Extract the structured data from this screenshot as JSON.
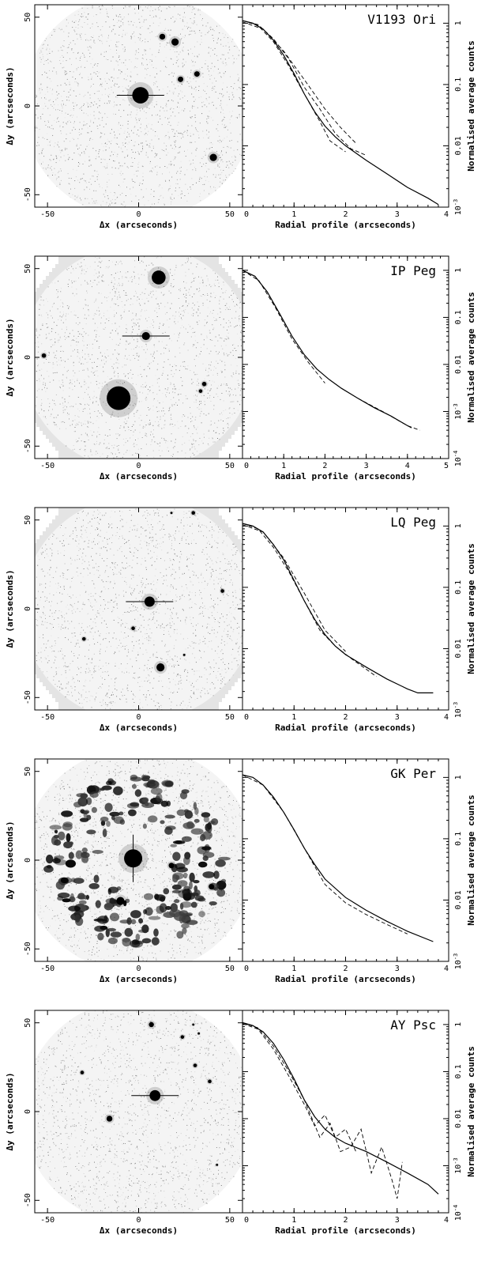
{
  "panels": [
    {
      "image": {
        "star_name": "V1193 Ori",
        "xlabel": "Δx (arcseconds)",
        "ylabel": "Δy (arcseconds)",
        "xticks": [
          "-50",
          "0",
          "50"
        ],
        "yticks": [
          "50",
          "0",
          "-50"
        ],
        "xlim": [
          -57,
          57
        ],
        "ylim": [
          -57,
          57
        ],
        "sources": [
          {
            "x": 1,
            "y": 6,
            "r": 4.5
          },
          {
            "x": 13,
            "y": 39,
            "r": 1.6
          },
          {
            "x": 20,
            "y": 36,
            "r": 2
          },
          {
            "x": 23,
            "y": 15,
            "r": 1.5
          },
          {
            "x": 32,
            "y": 18,
            "r": 1.5
          },
          {
            "x": 41,
            "y": -29,
            "r": 2
          }
        ],
        "target": {
          "x": 1,
          "y": 6
        }
      },
      "chart_data": {
        "type": "line",
        "xlabel": "Radial profile (arcseconds)",
        "ylabel": "Normalised average counts",
        "xlim": [
          0,
          4
        ],
        "ylim": [
          0.001,
          2
        ],
        "yscale": "log",
        "xticks": [
          "0",
          "1",
          "2",
          "3",
          "4"
        ],
        "yticks": [
          "1",
          "0.1",
          "0.01",
          "10^-3"
        ],
        "series": [
          {
            "style": "solid",
            "x": [
              0,
              0.2,
              0.4,
              0.6,
              0.8,
              1.0,
              1.2,
              1.4,
              1.6,
              1.8,
              2.0,
              2.4,
              2.8,
              3.2,
              3.6,
              3.8
            ],
            "y": [
              1.1,
              1.0,
              0.8,
              0.53,
              0.3,
              0.15,
              0.07,
              0.036,
              0.021,
              0.014,
              0.01,
              0.0058,
              0.0035,
              0.0021,
              0.0014,
              0.0011
            ]
          },
          {
            "style": "dashed",
            "x": [
              0,
              0.3,
              0.6,
              0.9,
              1.2,
              1.5,
              1.8,
              2.1,
              2.4
            ],
            "y": [
              1.1,
              0.95,
              0.56,
              0.26,
              0.09,
              0.04,
              0.016,
              0.009,
              0.007
            ]
          },
          {
            "style": "dashed",
            "x": [
              0,
              0.3,
              0.6,
              0.9,
              1.2,
              1.5,
              1.7,
              2.0
            ],
            "y": [
              1.1,
              0.92,
              0.5,
              0.2,
              0.07,
              0.025,
              0.012,
              0.008
            ]
          },
          {
            "style": "dashed",
            "x": [
              0,
              0.4,
              0.8,
              1.2,
              1.6,
              1.9,
              2.2
            ],
            "y": [
              1.05,
              0.8,
              0.35,
              0.12,
              0.04,
              0.02,
              0.011
            ]
          }
        ]
      }
    },
    {
      "image": {
        "star_name": "IP Peg",
        "xlabel": "Δx (arcseconds)",
        "ylabel": "Δy (arcseconds)",
        "xticks": [
          "-50",
          "0",
          "50"
        ],
        "yticks": [
          "50",
          "0",
          "-50"
        ],
        "xlim": [
          -57,
          57
        ],
        "ylim": [
          -57,
          57
        ],
        "sources": [
          {
            "x": 11,
            "y": 45,
            "r": 3.8
          },
          {
            "x": 4,
            "y": 12,
            "r": 2.2
          },
          {
            "x": -52,
            "y": 1,
            "r": 1.2
          },
          {
            "x": -11,
            "y": -23,
            "r": 6.5
          },
          {
            "x": 36,
            "y": -15,
            "r": 1.2
          },
          {
            "x": 34,
            "y": -19,
            "r": 1
          }
        ],
        "target": {
          "x": 4,
          "y": 12
        }
      },
      "chart_data": {
        "type": "line",
        "xlabel": "Radial profile (arcseconds)",
        "ylabel": "Normalised average counts",
        "xlim": [
          0,
          5
        ],
        "ylim": [
          0.0001,
          2
        ],
        "yscale": "log",
        "xticks": [
          "0",
          "1",
          "2",
          "3",
          "4",
          "5"
        ],
        "yticks": [
          "1",
          "0.1",
          "0.01",
          "10^-3",
          "10^-4"
        ],
        "series": [
          {
            "style": "solid",
            "x": [
              0,
              0.3,
              0.6,
              0.9,
              1.2,
              1.5,
              1.8,
              2.1,
              2.4,
              2.8,
              3.2,
              3.6,
              4.0,
              4.1
            ],
            "y": [
              1.0,
              0.75,
              0.35,
              0.12,
              0.04,
              0.016,
              0.008,
              0.0048,
              0.0031,
              0.0019,
              0.0012,
              0.0008,
              0.0005,
              0.00045
            ]
          },
          {
            "style": "dashed",
            "x": [
              0,
              0.4,
              0.8,
              1.2,
              1.6,
              2.0
            ],
            "y": [
              1.0,
              0.6,
              0.16,
              0.035,
              0.011,
              0.004
            ]
          },
          {
            "style": "dashed",
            "x": [
              2.8,
              3.4,
              4.0,
              4.3
            ],
            "y": [
              0.0019,
              0.001,
              0.0005,
              0.0004
            ]
          }
        ]
      }
    },
    {
      "image": {
        "star_name": "LQ Peg",
        "xlabel": "Δx (arcseconds)",
        "ylabel": "Δy (arcseconds)",
        "xticks": [
          "-50",
          "0",
          "50"
        ],
        "yticks": [
          "50",
          "0",
          "-50"
        ],
        "xlim": [
          -57,
          57
        ],
        "ylim": [
          -57,
          57
        ],
        "sources": [
          {
            "x": 6,
            "y": 4,
            "r": 2.8
          },
          {
            "x": 30,
            "y": 54,
            "r": 1
          },
          {
            "x": 18,
            "y": 54,
            "r": 0.6
          },
          {
            "x": 46,
            "y": 10,
            "r": 1
          },
          {
            "x": 12,
            "y": -33,
            "r": 2.2
          },
          {
            "x": -30,
            "y": -17,
            "r": 1
          },
          {
            "x": -3,
            "y": -11,
            "r": 1
          },
          {
            "x": 25,
            "y": -26,
            "r": 0.6
          }
        ],
        "target": {
          "x": 6,
          "y": 4
        }
      },
      "chart_data": {
        "type": "line",
        "xlabel": "Radial profile (arcseconds)",
        "ylabel": "Normalised average counts",
        "xlim": [
          0,
          4
        ],
        "ylim": [
          0.001,
          2
        ],
        "yscale": "log",
        "xticks": [
          "0",
          "1",
          "2",
          "3",
          "4"
        ],
        "yticks": [
          "1",
          "0.1",
          "0.01",
          "10^-3"
        ],
        "series": [
          {
            "style": "solid",
            "x": [
              0,
              0.2,
              0.4,
              0.6,
              0.8,
              1.0,
              1.2,
              1.4,
              1.6,
              1.8,
              2.0,
              2.4,
              2.8,
              3.2,
              3.4,
              3.7
            ],
            "y": [
              1.1,
              1.0,
              0.8,
              0.5,
              0.28,
              0.13,
              0.06,
              0.03,
              0.017,
              0.011,
              0.008,
              0.005,
              0.0032,
              0.0022,
              0.0019,
              0.0019
            ]
          },
          {
            "style": "dashed",
            "x": [
              0,
              0.3,
              0.6,
              0.9,
              1.2,
              1.5,
              1.8,
              2.1,
              2.6
            ],
            "y": [
              1.1,
              0.9,
              0.45,
              0.18,
              0.06,
              0.02,
              0.011,
              0.007,
              0.0035
            ]
          },
          {
            "style": "dashed",
            "x": [
              0,
              0.4,
              0.8,
              1.2,
              1.6,
              2.0
            ],
            "y": [
              1.05,
              0.8,
              0.3,
              0.08,
              0.02,
              0.009
            ]
          }
        ]
      }
    },
    {
      "image": {
        "star_name": "GK Per",
        "xlabel": "Δx (arcseconds)",
        "ylabel": "Δy (arcseconds)",
        "xticks": [
          "-50",
          "0",
          "50"
        ],
        "yticks": [
          "50",
          "0",
          "-50"
        ],
        "xlim": [
          -57,
          57
        ],
        "ylim": [
          -57,
          57
        ],
        "sources": [
          {
            "x": -3,
            "y": 1,
            "r": 5
          },
          {
            "x": -10,
            "y": -23,
            "r": 2.2
          },
          {
            "x": 18,
            "y": -3,
            "r": 1.5
          },
          {
            "x": 40,
            "y": -15,
            "r": 1.5
          }
        ],
        "target": {
          "x": -3,
          "y": 1
        }
      },
      "chart_data": {
        "type": "line",
        "xlabel": "Radial profile (arcseconds)",
        "ylabel": "Normalised average counts",
        "xlim": [
          0,
          4
        ],
        "ylim": [
          0.001,
          2
        ],
        "yscale": "log",
        "xticks": [
          "0",
          "1",
          "2",
          "3",
          "4"
        ],
        "yticks": [
          "1",
          "0.1",
          "0.01",
          "10^-3"
        ],
        "series": [
          {
            "style": "solid",
            "x": [
              0,
              0.2,
              0.4,
              0.6,
              0.8,
              1.0,
              1.2,
              1.4,
              1.6,
              2.0,
              2.4,
              2.8,
              3.2,
              3.7
            ],
            "y": [
              1.1,
              1.0,
              0.75,
              0.48,
              0.27,
              0.14,
              0.07,
              0.038,
              0.022,
              0.011,
              0.0068,
              0.0045,
              0.0031,
              0.0021
            ]
          },
          {
            "style": "dashed",
            "x": [
              0,
              0.4,
              0.8,
              1.2,
              1.6,
              2.0,
              2.4,
              2.8,
              3.2
            ],
            "y": [
              1.1,
              0.75,
              0.27,
              0.07,
              0.018,
              0.009,
              0.0058,
              0.004,
              0.0028
            ]
          }
        ]
      }
    },
    {
      "image": {
        "star_name": "AY Psc",
        "xlabel": "Δx (arcseconds)",
        "ylabel": "Δy (arcseconds)",
        "xticks": [
          "-50",
          "0",
          "50"
        ],
        "yticks": [
          "50",
          "0",
          "-50"
        ],
        "xlim": [
          -57,
          57
        ],
        "ylim": [
          -57,
          57
        ],
        "sources": [
          {
            "x": 9,
            "y": 9,
            "r": 3
          },
          {
            "x": 7,
            "y": 49,
            "r": 1.4
          },
          {
            "x": 24,
            "y": 42,
            "r": 1
          },
          {
            "x": 30,
            "y": 49,
            "r": 0.6
          },
          {
            "x": 33,
            "y": 44,
            "r": 0.6
          },
          {
            "x": 31,
            "y": 26,
            "r": 1
          },
          {
            "x": 39,
            "y": 17,
            "r": 1
          },
          {
            "x": -31,
            "y": 22,
            "r": 1
          },
          {
            "x": -16,
            "y": -4,
            "r": 1.6
          },
          {
            "x": 43,
            "y": -30,
            "r": 0.6
          }
        ],
        "target": {
          "x": 9,
          "y": 9
        }
      },
      "chart_data": {
        "type": "line",
        "xlabel": "Radial profile (arcseconds)",
        "ylabel": "Normalised average counts",
        "xlim": [
          0,
          4
        ],
        "ylim": [
          0.0001,
          2
        ],
        "yscale": "log",
        "xticks": [
          "0",
          "1",
          "2",
          "3",
          "4"
        ],
        "yticks": [
          "1",
          "0.1",
          "0.01",
          "10^-3",
          "10^-4"
        ],
        "series": [
          {
            "style": "solid",
            "x": [
              0,
              0.2,
              0.4,
              0.6,
              0.8,
              1.0,
              1.2,
              1.4,
              1.6,
              1.8,
              2.0,
              2.4,
              2.8,
              3.2,
              3.6,
              3.8
            ],
            "y": [
              1.1,
              0.95,
              0.7,
              0.4,
              0.18,
              0.07,
              0.025,
              0.011,
              0.006,
              0.004,
              0.003,
              0.002,
              0.0012,
              0.0007,
              0.0004,
              0.00025
            ]
          },
          {
            "style": "dashed",
            "x": [
              0,
              0.3,
              0.6,
              0.9,
              1.2,
              1.5,
              1.7,
              1.9,
              2.1,
              2.3,
              2.5,
              2.7,
              2.9,
              3.0,
              3.1
            ],
            "y": [
              1.1,
              0.85,
              0.35,
              0.1,
              0.025,
              0.004,
              0.008,
              0.002,
              0.0025,
              0.006,
              0.0007,
              0.0025,
              0.0005,
              0.0002,
              0.0012
            ]
          },
          {
            "style": "dashed",
            "x": [
              0,
              0.3,
              0.6,
              0.9,
              1.2,
              1.4,
              1.6,
              1.8,
              2.0,
              2.2
            ],
            "y": [
              1.05,
              0.8,
              0.3,
              0.08,
              0.02,
              0.007,
              0.012,
              0.004,
              0.006,
              0.002
            ]
          }
        ]
      }
    }
  ]
}
